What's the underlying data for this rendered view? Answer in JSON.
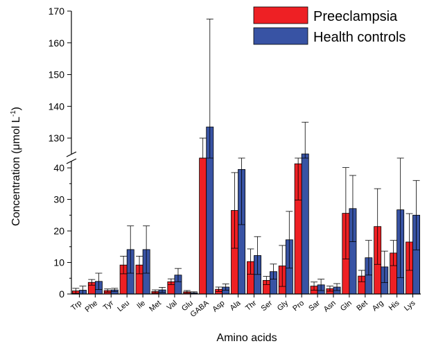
{
  "chart_data": {
    "type": "bar",
    "xlabel": "Amino acids",
    "ylabel_parts": [
      "Concentration (",
      "μ",
      "mol L",
      "-1",
      ")"
    ],
    "broken_axis": {
      "lower_range": [
        0,
        42
      ],
      "upper_range": [
        125,
        170
      ],
      "lower_ticks": [
        0,
        10,
        20,
        30,
        40
      ],
      "upper_ticks": [
        130,
        140,
        150,
        160,
        170
      ]
    },
    "categories": [
      "Trp",
      "Phe",
      "Tyr",
      "Leu",
      "Ile",
      "Met",
      "Val",
      "Glu",
      "GABA",
      "Asp",
      "Ala",
      "Thr",
      "Ser",
      "Gly",
      "Pro",
      "Sar",
      "Asn",
      "Gln",
      "Bet",
      "Arg",
      "His",
      "Lys"
    ],
    "series": [
      {
        "name": "Preeclampsia",
        "color": "#ee2024",
        "values": [
          1.0,
          3.7,
          1.1,
          9.2,
          9.2,
          0.8,
          3.9,
          0.7,
          120,
          1.5,
          26.5,
          10.3,
          4.3,
          8.9,
          41.3,
          2.5,
          1.7,
          25.6,
          5.7,
          21.4,
          13.0,
          16.5
        ],
        "errors": [
          0.8,
          0.9,
          0.5,
          2.8,
          2.8,
          0.5,
          0.9,
          0.4,
          10,
          0.7,
          12.0,
          4.0,
          1.3,
          6.5,
          11.5,
          1.3,
          0.8,
          14.5,
          1.8,
          12.0,
          4.0,
          9.0
        ]
      },
      {
        "name": "Health controls",
        "color": "#3853a4",
        "values": [
          1.2,
          4.0,
          1.3,
          14.1,
          14.1,
          1.3,
          6.0,
          0.4,
          133.5,
          2.2,
          39.5,
          12.2,
          7.1,
          17.2,
          125,
          2.9,
          2.2,
          27.1,
          11.5,
          8.6,
          26.7,
          25.0
        ],
        "errors": [
          1.3,
          2.6,
          0.5,
          7.5,
          7.5,
          0.8,
          2.1,
          0.3,
          34.0,
          1.0,
          17.5,
          6.0,
          2.4,
          9.0,
          10,
          1.8,
          1.1,
          10.5,
          5.5,
          5.0,
          21.5,
          11.0
        ]
      }
    ],
    "legend": "top-right",
    "grid": false
  }
}
